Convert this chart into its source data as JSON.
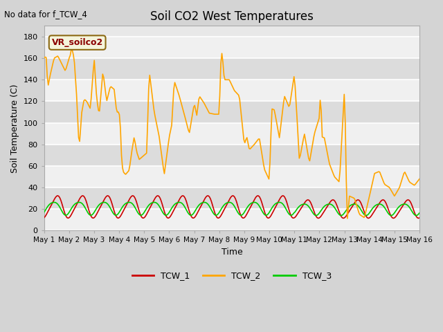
{
  "title": "Soil CO2 West Temperatures",
  "top_left_note": "No data for f_TCW_4",
  "xlabel": "Time",
  "ylabel": "Soil Temperature (C)",
  "ylim": [
    0,
    190
  ],
  "yticks": [
    0,
    20,
    40,
    60,
    80,
    100,
    120,
    140,
    160,
    180
  ],
  "fig_bg_color": "#d4d4d4",
  "plot_bg_color": "#e8e8e8",
  "legend_label": "VR_soilco2",
  "legend_box_fill": "#f5f5dc",
  "legend_box_edge": "#8B6914",
  "series_colors": {
    "TCW_1": "#cc0000",
    "TCW_2": "#FFA500",
    "TCW_3": "#00cc00"
  },
  "x_day_labels": [
    "May 1",
    "May 2",
    "May 3",
    "May 4",
    "May 5",
    "May 6",
    "May 7",
    "May 8",
    "May 9",
    "May 10",
    "May 11",
    "May 12",
    "May 13",
    "May 14",
    "May 15",
    "May 16"
  ],
  "num_days": 15,
  "tcw2_ctrl_x": [
    0,
    0.08,
    0.15,
    0.25,
    0.4,
    0.55,
    0.7,
    0.85,
    1.0,
    1.05,
    1.1,
    1.2,
    1.3,
    1.4,
    1.5,
    1.6,
    1.7,
    1.85,
    2.0,
    2.1,
    2.2,
    2.35,
    2.5,
    2.65,
    2.8,
    2.9,
    3.0,
    3.05,
    3.1,
    3.15,
    3.25,
    3.4,
    3.5,
    3.6,
    3.7,
    3.8,
    3.9,
    4.0,
    4.1,
    4.2,
    4.4,
    4.6,
    4.8,
    5.0,
    5.1,
    5.2,
    5.4,
    5.6,
    5.8,
    6.0,
    6.1,
    6.2,
    6.4,
    6.6,
    6.8,
    7.0,
    7.05,
    7.1,
    7.15,
    7.2,
    7.4,
    7.6,
    7.8,
    8.0,
    8.1,
    8.2,
    8.4,
    8.6,
    8.8,
    9.0,
    9.1,
    9.2,
    9.4,
    9.6,
    9.8,
    10.0,
    10.1,
    10.2,
    10.4,
    10.6,
    10.8,
    11.0,
    11.05,
    11.1,
    11.2,
    11.4,
    11.6,
    11.8,
    12.0,
    12.05,
    12.1,
    12.2,
    12.4,
    12.6,
    12.8,
    13.0,
    13.2,
    13.4,
    13.6,
    13.8,
    14.0,
    14.2,
    14.4,
    14.6,
    14.8,
    15.0
  ],
  "tcw2_ctrl_y": [
    160,
    162,
    133,
    145,
    160,
    162,
    155,
    148,
    160,
    163,
    170,
    160,
    125,
    76,
    109,
    122,
    120,
    113,
    160,
    123,
    107,
    148,
    120,
    134,
    131,
    110,
    110,
    95,
    65,
    55,
    52,
    56,
    73,
    87,
    73,
    66,
    68,
    70,
    72,
    148,
    110,
    87,
    52,
    87,
    98,
    139,
    125,
    108,
    90,
    118,
    107,
    125,
    118,
    109,
    108,
    108,
    152,
    165,
    155,
    140,
    140,
    130,
    125,
    80,
    87,
    75,
    80,
    86,
    57,
    47,
    113,
    112,
    86,
    125,
    114,
    145,
    107,
    65,
    90,
    63,
    90,
    105,
    131,
    87,
    86,
    62,
    50,
    45,
    130,
    85,
    7,
    32,
    30,
    15,
    12,
    32,
    53,
    55,
    43,
    40,
    32,
    40,
    55,
    45,
    42,
    48
  ]
}
